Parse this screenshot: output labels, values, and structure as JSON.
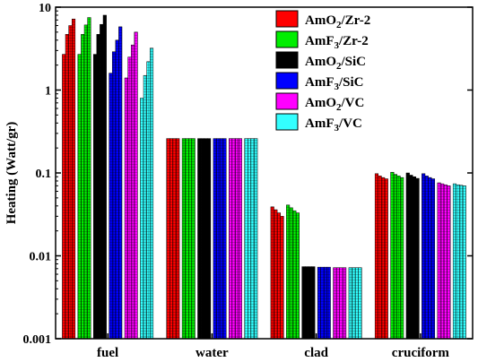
{
  "chart_data": {
    "type": "bar",
    "yscale": "log",
    "ylim": [
      0.001,
      10
    ],
    "ylabel": "Heating (Watt/gr)",
    "xlabel": "",
    "title": "",
    "yticks": [
      0.001,
      0.01,
      0.1,
      1,
      10
    ],
    "ytick_labels": [
      "0.001",
      "0.01",
      "0.1",
      "1",
      "10"
    ],
    "legend_position": "top-right",
    "categories": [
      "fuel",
      "water",
      "clad",
      "cruciform"
    ],
    "series": [
      {
        "name": "AmO2/Zr-2",
        "label_main": "AmO",
        "label_sub": "2",
        "label_rest": "/Zr-2",
        "color": "#ff0000",
        "values": [
          [
            2.7,
            4.7,
            6.0,
            7.2
          ],
          [
            0.26,
            0.26,
            0.26,
            0.26
          ],
          [
            0.039,
            0.036,
            0.033,
            0.03
          ],
          [
            0.098,
            0.092,
            0.088,
            0.085
          ]
        ]
      },
      {
        "name": "AmF3/Zr-2",
        "label_main": "AmF",
        "label_sub": "3",
        "label_rest": "/Zr-2",
        "color": "#00ee00",
        "values": [
          [
            2.7,
            4.7,
            6.1,
            7.5
          ],
          [
            0.26,
            0.26,
            0.26,
            0.26
          ],
          [
            0.041,
            0.038,
            0.035,
            0.033
          ],
          [
            0.102,
            0.096,
            0.092,
            0.088
          ]
        ]
      },
      {
        "name": "AmO2/SiC",
        "label_main": "AmO",
        "label_sub": "2",
        "label_rest": "/SiC",
        "color": "#000000",
        "values": [
          [
            2.7,
            4.7,
            6.2,
            8.0
          ],
          [
            0.26,
            0.26,
            0.26,
            0.26
          ],
          [
            0.0074,
            0.0074,
            0.0074,
            0.0074
          ],
          [
            0.1,
            0.094,
            0.09,
            0.086
          ]
        ]
      },
      {
        "name": "AmF3/SiC",
        "label_main": "AmF",
        "label_sub": "3",
        "label_rest": "/SiC",
        "color": "#0000ff",
        "values": [
          [
            1.6,
            2.9,
            4.0,
            5.8
          ],
          [
            0.26,
            0.26,
            0.26,
            0.26
          ],
          [
            0.0073,
            0.0073,
            0.0073,
            0.0073
          ],
          [
            0.098,
            0.092,
            0.088,
            0.085
          ]
        ]
      },
      {
        "name": "AmO2/VC",
        "label_main": "AmO",
        "label_sub": "2",
        "label_rest": "/VC",
        "color": "#ff00ff",
        "values": [
          [
            1.4,
            2.5,
            3.5,
            5.0
          ],
          [
            0.26,
            0.26,
            0.26,
            0.26
          ],
          [
            0.0072,
            0.0072,
            0.0072,
            0.0072
          ],
          [
            0.076,
            0.074,
            0.072,
            0.07
          ]
        ]
      },
      {
        "name": "AmF3/VC",
        "label_main": "AmF",
        "label_sub": "3",
        "label_rest": "/VC",
        "color": "#33ffff",
        "values": [
          [
            0.8,
            1.5,
            2.2,
            3.2
          ],
          [
            0.26,
            0.26,
            0.26,
            0.26
          ],
          [
            0.0072,
            0.0072,
            0.0072,
            0.0072
          ],
          [
            0.074,
            0.072,
            0.071,
            0.07
          ]
        ]
      }
    ]
  }
}
